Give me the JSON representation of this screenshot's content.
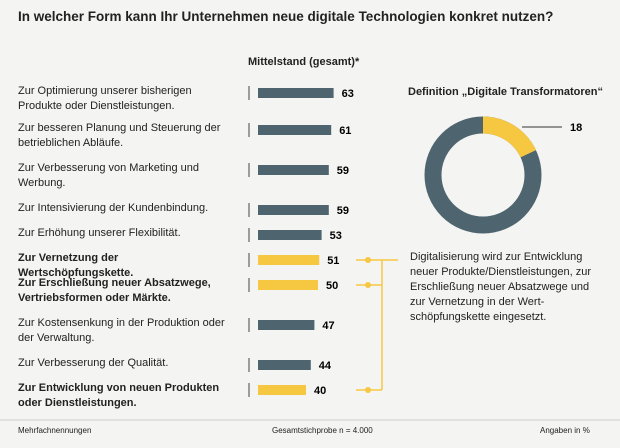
{
  "chart_data": [
    {
      "type": "bar",
      "title": "In welcher Form kann Ihr Unternehmen neue digitale Technologien konkret nutzen?",
      "subtitle": "Mittelstand (gesamt)*",
      "categories": [
        "Zur Optimierung unserer bisherigen Produkte oder Dienstleistungen.",
        "Zur besseren Planung und Steuerung der betrieblichen Abläufe.",
        "Zur Verbesserung von Marketing und Werbung.",
        "Zur Intensivierung der Kundenbindung.",
        "Zur Erhöhung unserer Flexibilität.",
        "Zur Vernetzung der Wertschöpfungskette.",
        "Zur Erschließung neuer Absatzwege, Vertriebsformen oder Märkte.",
        "Zur Kostensenkung in der Produktion oder der Verwaltung.",
        "Zur Verbesserung der Qualität.",
        "Zur Entwicklung von neuen Produkten oder Dienstleistungen."
      ],
      "values": [
        63,
        61,
        59,
        59,
        53,
        51,
        50,
        47,
        44,
        40
      ],
      "colors": [
        "#4e6570",
        "#4e6570",
        "#4e6570",
        "#4e6570",
        "#4e6570",
        "#f6c842",
        "#f6c842",
        "#4e6570",
        "#4e6570",
        "#f6c842"
      ],
      "highlight_color": "#f6c842",
      "notes": [
        "Mehrfachnennungen",
        "Gesamtstichprobe n = 4.000",
        "Angaben in %"
      ]
    },
    {
      "type": "donut",
      "title": "Definition „Digitale Transformatoren“",
      "value": 18,
      "color": "#f6c842",
      "rest_color": "#4e6570",
      "description": "Digitalisierung wird zur Entwicklung neuer Produkte/Dienstleistungen, zur Erschließung neuer Absatzwege und zur Vernetzung in der Wert-schöpfungskette eingesetzt."
    }
  ]
}
